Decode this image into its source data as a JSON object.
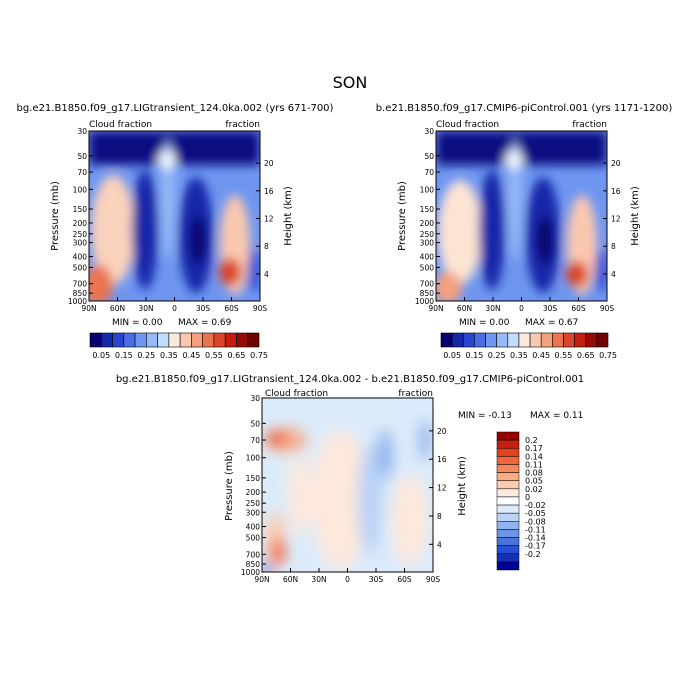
{
  "season": "SON",
  "chart_data": [
    {
      "type": "heatmap",
      "title": "bg.e21.B1850.f09_g17.LIGtransient_124.0ka.002 (yrs 671-700)",
      "variable_left": "Cloud fraction",
      "variable_right": "fraction",
      "xlabel": "",
      "ylabel": "Pressure (mb)",
      "ylabel_right": "Height (km)",
      "x_ticks": [
        "90N",
        "60N",
        "30N",
        "0",
        "30S",
        "60S",
        "90S"
      ],
      "y_ticks": [
        "30",
        "50",
        "70",
        "100",
        "150",
        "200",
        "250",
        "300",
        "400",
        "500",
        "700",
        "850",
        "1000"
      ],
      "height_ticks": [
        "20",
        "16",
        "12",
        "8",
        "4"
      ],
      "ylim": [
        1000,
        30
      ],
      "min_text": "MIN =    0.00",
      "max_text": "MAX =    0.69",
      "colorbar_levels": [
        "0.05",
        "0.15",
        "0.25",
        "0.35",
        "0.45",
        "0.55",
        "0.65",
        "0.75"
      ],
      "colorbar_colors": [
        "#08006e",
        "#1428a8",
        "#2846d2",
        "#4b6ee6",
        "#6e96f0",
        "#96b9f7",
        "#c3dcfb",
        "#fde8dc",
        "#fbc8af",
        "#f5a07d",
        "#ec7350",
        "#dc4628",
        "#c31e0f",
        "#960a05",
        "#6e0000"
      ]
    },
    {
      "type": "heatmap",
      "title": "b.e21.B1850.f09_g17.CMIP6-piControl.001 (yrs 1171-1200)",
      "variable_left": "Cloud fraction",
      "variable_right": "fraction",
      "xlabel": "",
      "ylabel": "Pressure (mb)",
      "ylabel_right": "Height (km)",
      "x_ticks": [
        "90N",
        "60N",
        "30N",
        "0",
        "30S",
        "60S",
        "90S"
      ],
      "y_ticks": [
        "30",
        "50",
        "70",
        "100",
        "150",
        "200",
        "250",
        "300",
        "400",
        "500",
        "700",
        "850",
        "1000"
      ],
      "height_ticks": [
        "20",
        "16",
        "12",
        "8",
        "4"
      ],
      "ylim": [
        1000,
        30
      ],
      "min_text": "MIN =    0.00",
      "max_text": "MAX =    0.67",
      "colorbar_levels": [
        "0.05",
        "0.15",
        "0.25",
        "0.35",
        "0.45",
        "0.55",
        "0.65",
        "0.75"
      ]
    },
    {
      "type": "heatmap",
      "title": "bg.e21.B1850.f09_g17.LIGtransient_124.0ka.002 - b.e21.B1850.f09_g17.CMIP6-piControl.001",
      "variable_left": "Cloud fraction",
      "variable_right": "fraction",
      "xlabel": "",
      "ylabel": "Pressure (mb)",
      "ylabel_right": "Height (km)",
      "x_ticks": [
        "90N",
        "60N",
        "30N",
        "0",
        "30S",
        "60S",
        "90S"
      ],
      "y_ticks": [
        "30",
        "50",
        "70",
        "100",
        "150",
        "200",
        "250",
        "300",
        "400",
        "500",
        "700",
        "850",
        "1000"
      ],
      "height_ticks": [
        "20",
        "16",
        "12",
        "8",
        "4"
      ],
      "ylim": [
        1000,
        30
      ],
      "min_text": "MIN =   -0.13",
      "max_text": "MAX =    0.11",
      "colorbar_levels": [
        "0.2",
        "0.17",
        "0.14",
        "0.11",
        "0.08",
        "0.05",
        "0.02",
        "0",
        "-0.02",
        "-0.05",
        "-0.08",
        "-0.11",
        "-0.14",
        "-0.17",
        "-0.2"
      ],
      "colorbar_colors": [
        "#960000",
        "#c81e0f",
        "#e1411e",
        "#f0643c",
        "#f5875f",
        "#f9aa87",
        "#fccbaf",
        "#fde8dc",
        "#ffffff",
        "#dcebfa",
        "#b9d2f5",
        "#91b4ee",
        "#6e96e6",
        "#4b73dc",
        "#2850d2",
        "#1432b4",
        "#000096"
      ]
    }
  ]
}
